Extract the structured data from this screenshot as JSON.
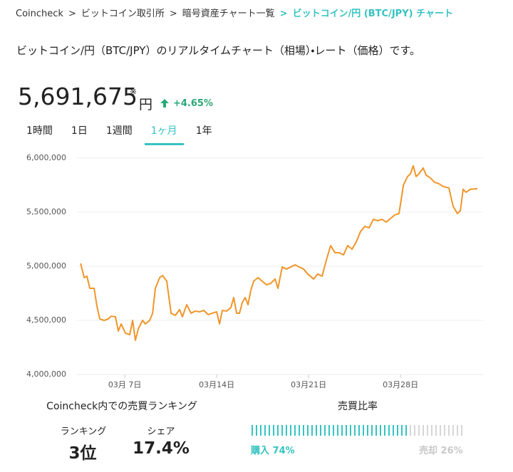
{
  "breadcrumb": {
    "separator": ">",
    "items": [
      "Coincheck",
      "ビットコイン取引所",
      "暗号資産チャート一覧",
      "ビットコイン/円 (BTC/JPY) チャート"
    ]
  },
  "description": "ビットコイン/円（BTC/JPY）のリアルタイムチャート（相場）・レート（価格）です。",
  "price": {
    "value": "5,691,675",
    "note_mark": "※",
    "unit": "円",
    "change": "+4.65%"
  },
  "tabs": {
    "items": [
      "1時間",
      "1日",
      "1週間",
      "1ヶ月",
      "1年"
    ],
    "active": 3
  },
  "chart_data": {
    "type": "line",
    "color": "#f0962a",
    "grid": true,
    "x": [
      3.64,
      3.91,
      4.12,
      4.34,
      4.67,
      4.88,
      5.1,
      5.43,
      5.75,
      5.97,
      6.29,
      6.51,
      6.73,
      7.05,
      7.38,
      7.6,
      7.81,
      8.03,
      8.36,
      8.57,
      8.9,
      9.12,
      9.33,
      9.66,
      9.88,
      10.2,
      10.53,
      10.85,
      11.18,
      11.39,
      11.72,
      12.05,
      12.37,
      12.7,
      13.02,
      13.35,
      13.67,
      14.0,
      14.22,
      14.43,
      14.76,
      15.08,
      15.3,
      15.52,
      15.74,
      15.95,
      16.17,
      16.39,
      16.6,
      16.82,
      17.15,
      17.47,
      17.8,
      18.12,
      18.45,
      18.67,
      18.99,
      19.32,
      19.64,
      19.97,
      20.29,
      20.62,
      20.94,
      21.38,
      21.7,
      22.03,
      22.36,
      22.68,
      23.01,
      23.33,
      23.66,
      23.98,
      24.31,
      24.63,
      24.96,
      25.29,
      25.61,
      25.94,
      26.26,
      26.59,
      26.91,
      27.24,
      27.56,
      27.89,
      28.22,
      28.54,
      28.76,
      28.97,
      29.19,
      29.41,
      29.73,
      29.95,
      30.28,
      30.6,
      30.93,
      31.25,
      31.69,
      32.01,
      32.34,
      32.56,
      32.77,
      32.99,
      33.32,
      33.86
    ],
    "series": [
      {
        "name": "BTC/JPY",
        "color": "#f0962a",
        "values": [
          5026000,
          4895000,
          4908000,
          4796000,
          4796000,
          4632000,
          4513000,
          4500000,
          4513000,
          4539000,
          4533000,
          4401000,
          4467000,
          4382000,
          4368000,
          4500000,
          4316000,
          4421000,
          4500000,
          4467000,
          4500000,
          4566000,
          4796000,
          4895000,
          4914000,
          4862000,
          4566000,
          4546000,
          4599000,
          4533000,
          4645000,
          4566000,
          4586000,
          4579000,
          4592000,
          4553000,
          4566000,
          4579000,
          4467000,
          4592000,
          4586000,
          4618000,
          4711000,
          4566000,
          4566000,
          4664000,
          4711000,
          4645000,
          4776000,
          4862000,
          4895000,
          4862000,
          4829000,
          4842000,
          4882000,
          4796000,
          4993000,
          4974000,
          4993000,
          5013000,
          4993000,
          4974000,
          4928000,
          4882000,
          4928000,
          4908000,
          5059000,
          5191000,
          5125000,
          5125000,
          5105000,
          5191000,
          5158000,
          5224000,
          5322000,
          5368000,
          5355000,
          5434000,
          5421000,
          5434000,
          5408000,
          5441000,
          5474000,
          5487000,
          5750000,
          5829000,
          5855000,
          5928000,
          5829000,
          5855000,
          5908000,
          5842000,
          5816000,
          5776000,
          5763000,
          5737000,
          5724000,
          5553000,
          5487000,
          5513000,
          5711000,
          5684000,
          5711000,
          5717000
        ]
      }
    ],
    "xlim": [
      3.36,
      34.29
    ],
    "xticks": [
      {
        "value": 7,
        "label": "03月 7日"
      },
      {
        "value": 14,
        "label": "03月14日"
      },
      {
        "value": 21,
        "label": "03月21日"
      },
      {
        "value": 28,
        "label": "03月28日"
      }
    ],
    "ylim": [
      4000000,
      6000000
    ],
    "yticks": [
      {
        "value": 4000000,
        "label": "4,000,000"
      },
      {
        "value": 4500000,
        "label": "4,500,000"
      },
      {
        "value": 5000000,
        "label": "5,000,000"
      },
      {
        "value": 5500000,
        "label": "5,500,000"
      },
      {
        "value": 6000000,
        "label": "6,000,000"
      }
    ]
  },
  "ranking": {
    "title": "Coincheck内での売買ランキング",
    "rank_label": "ランキング",
    "rank": "3位",
    "share_label": "シェア",
    "share": "17.4%"
  },
  "ratio": {
    "title": "売買比率",
    "buy": {
      "label": "購入 74%",
      "value": 74,
      "color": "#35c3c1"
    },
    "sell": {
      "label": "売却 26%",
      "value": 26,
      "color": "#d6d6d6"
    }
  }
}
